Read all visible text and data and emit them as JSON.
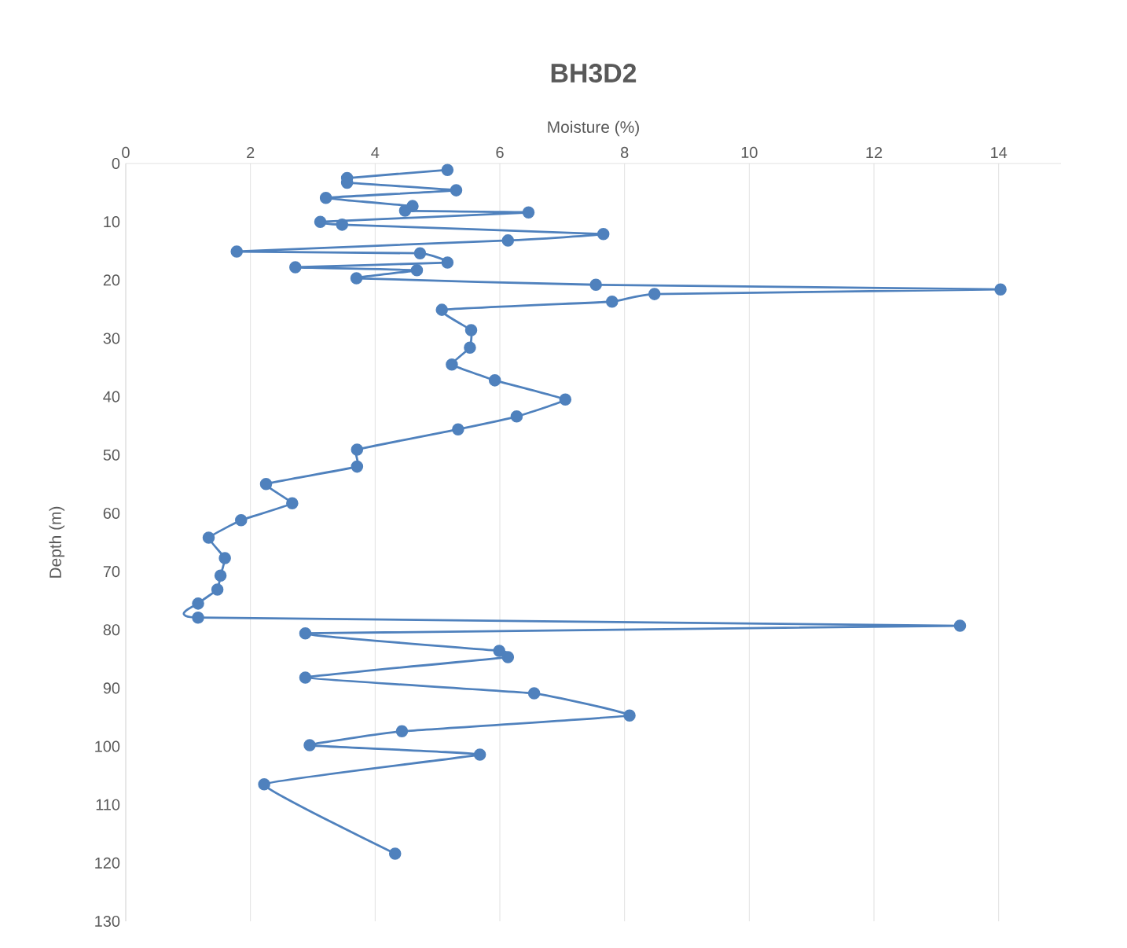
{
  "chart_data": {
    "type": "line",
    "title": "BH3D2",
    "xlabel": "Moisture (%)",
    "ylabel": "Depth (m)",
    "xlim": [
      0,
      15
    ],
    "xticks": [
      0,
      2,
      4,
      6,
      8,
      10,
      12,
      14
    ],
    "ylim": [
      130,
      0
    ],
    "yticks": [
      0,
      10,
      20,
      30,
      40,
      50,
      60,
      70,
      80,
      90,
      100,
      110,
      120,
      130
    ],
    "grid": "x",
    "marker": "circle",
    "line_style": "solid",
    "series": [
      {
        "color": "#4f81bd",
        "x": [
          5.16,
          3.55,
          3.55,
          5.3,
          3.21,
          4.6,
          4.48,
          6.46,
          3.12,
          3.47,
          7.66,
          6.13,
          1.78,
          4.72,
          5.16,
          2.72,
          4.67,
          3.7,
          7.54,
          14.03,
          8.48,
          7.8,
          5.07,
          5.54,
          5.52,
          5.23,
          5.92,
          7.05,
          6.27,
          5.33,
          3.71,
          3.71,
          2.25,
          2.67,
          1.85,
          1.33,
          1.59,
          1.52,
          1.47,
          1.16,
          1.16,
          13.38,
          2.88,
          5.99,
          6.13,
          2.88,
          6.55,
          8.08,
          4.43,
          2.95,
          5.68,
          2.22,
          4.32
        ],
        "values": [
          1.1,
          2.5,
          3.3,
          4.6,
          5.9,
          7.3,
          8.1,
          8.4,
          10,
          10.5,
          12.1,
          13.2,
          15.1,
          15.4,
          17,
          17.8,
          18.3,
          19.7,
          20.8,
          21.6,
          22.4,
          23.7,
          25.1,
          28.6,
          31.6,
          34.5,
          37.2,
          40.5,
          43.4,
          45.6,
          49.1,
          52,
          55,
          58.3,
          61.2,
          64.2,
          67.7,
          70.7,
          73.1,
          75.5,
          77.9,
          79.3,
          80.6,
          83.6,
          84.7,
          88.2,
          90.9,
          94.7,
          97.4,
          99.8,
          101.4,
          106.5,
          118.4
        ]
      }
    ]
  }
}
